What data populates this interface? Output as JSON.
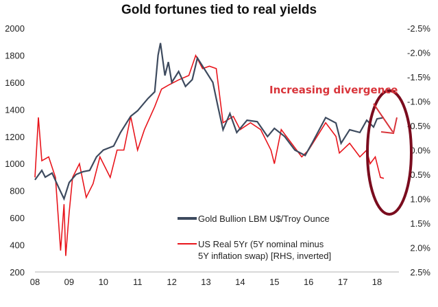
{
  "chart_data": {
    "type": "line",
    "title": "Gold fortunes tied to real yields",
    "x_ticks": [
      "08",
      "09",
      "10",
      "11",
      "12",
      "13",
      "14",
      "15",
      "16",
      "17",
      "18"
    ],
    "xlim": [
      2008,
      2018.3
    ],
    "left_axis": {
      "ylim": [
        200,
        2000
      ],
      "ticks": [
        "2000",
        "1800",
        "1600",
        "1400",
        "1200",
        "1000",
        "800",
        "600",
        "400",
        "200"
      ]
    },
    "right_axis": {
      "ylim": [
        -2.5,
        2.5
      ],
      "inverted": true,
      "ticks": [
        "-2.5%",
        "-2.0%",
        "-1.5%",
        "-1.0%",
        "-0.5%",
        "0.0%",
        "0.5%",
        "1.0%",
        "1.5%",
        "2.0%",
        "2.5%"
      ]
    },
    "grid": false,
    "legend_placement": "center-right",
    "annotation": "Increasing divergence",
    "colors": {
      "gold": "#3d4a5e",
      "real": "#e8141b",
      "annotation": "#d9353b",
      "ellipse": "#7a0c1e"
    },
    "series": [
      {
        "name": "Gold Bullion LBM U$/Troy Ounce",
        "axis": "left",
        "x": [
          2008.0,
          2008.2,
          2008.3,
          2008.5,
          2008.7,
          2008.85,
          2009.0,
          2009.2,
          2009.4,
          2009.6,
          2009.8,
          2010.0,
          2010.3,
          2010.5,
          2010.8,
          2011.0,
          2011.3,
          2011.5,
          2011.6,
          2011.67,
          2011.8,
          2011.9,
          2012.0,
          2012.2,
          2012.4,
          2012.6,
          2012.75,
          2013.0,
          2013.2,
          2013.35,
          2013.5,
          2013.7,
          2013.9,
          2014.2,
          2014.5,
          2014.8,
          2015.0,
          2015.3,
          2015.6,
          2015.9,
          2016.1,
          2016.5,
          2016.8,
          2016.95,
          2017.2,
          2017.5,
          2017.7,
          2017.9,
          2018.0,
          2018.2
        ],
        "y": [
          880,
          950,
          900,
          930,
          820,
          740,
          860,
          920,
          940,
          950,
          1050,
          1100,
          1130,
          1230,
          1350,
          1390,
          1480,
          1530,
          1800,
          1890,
          1650,
          1750,
          1600,
          1680,
          1570,
          1620,
          1780,
          1680,
          1600,
          1420,
          1250,
          1370,
          1230,
          1320,
          1310,
          1200,
          1260,
          1200,
          1100,
          1060,
          1150,
          1340,
          1300,
          1150,
          1250,
          1230,
          1320,
          1270,
          1330,
          1340
        ]
      },
      {
        "name": "US Real 5Yr (5Y nominal minus 5Y inflation swap) [RHS, inverted]",
        "axis": "right",
        "x": [
          2008.0,
          2008.1,
          2008.2,
          2008.4,
          2008.6,
          2008.75,
          2008.85,
          2008.9,
          2009.0,
          2009.1,
          2009.3,
          2009.5,
          2009.7,
          2009.9,
          2010.2,
          2010.4,
          2010.6,
          2010.8,
          2011.0,
          2011.2,
          2011.5,
          2011.7,
          2011.9,
          2012.2,
          2012.5,
          2012.7,
          2012.9,
          2013.1,
          2013.3,
          2013.5,
          2013.8,
          2014.0,
          2014.3,
          2014.6,
          2014.9,
          2015.0,
          2015.2,
          2015.5,
          2015.8,
          2016.0,
          2016.5,
          2016.8,
          2016.9,
          2017.2,
          2017.5,
          2017.7,
          2017.8,
          2017.95,
          2018.1,
          2018.2
        ],
        "y": [
          0.56,
          -0.67,
          0.22,
          0.14,
          0.56,
          2.06,
          1.11,
          2.17,
          1.28,
          0.56,
          0.28,
          0.97,
          0.69,
          0.14,
          0.56,
          0,
          0,
          -0.69,
          0,
          -0.42,
          -0.89,
          -1.25,
          -1.33,
          -1.44,
          -1.53,
          -1.94,
          -1.67,
          -1.72,
          -1.67,
          -0.56,
          -0.69,
          -0.42,
          -0.56,
          -0.42,
          0,
          0.28,
          -0.42,
          -0.14,
          0.14,
          0,
          -0.56,
          -0.28,
          0.06,
          -0.14,
          0.14,
          0,
          0.28,
          0.14,
          0.56,
          0.58
        ]
      }
    ],
    "legend": {
      "line1": "Gold Bullion LBM U$/Troy Ounce",
      "line2a": "US Real 5Yr (5Y nominal minus",
      "line2b": "5Y inflation swap) [RHS, inverted]"
    }
  }
}
